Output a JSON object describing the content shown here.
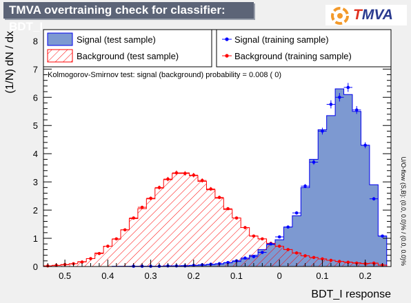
{
  "header": {
    "title": "TMVA overtraining check for classifier: BDT_I",
    "logo_text_a": "T",
    "logo_text_b": "MVA"
  },
  "colors": {
    "signal_fill": "#7d99d1",
    "signal_line": "#0000ee",
    "signal_points": "#0000ff",
    "background_hatch": "#ff0000",
    "background_points": "#ff0000",
    "title_bg": "#5c6477",
    "logo_ring": "#f39a2b"
  },
  "legend": {
    "signal_test": "Signal (test sample)",
    "background_test": "Background (test sample)",
    "signal_train": "Signal (training sample)",
    "background_train": "Background (training sample)"
  },
  "ks_text": "Kolmogorov-Smirnov test: signal (background) probability = 0.008 (    0)",
  "overflow_text": "U/O-flow (S,B): (0.0, 0.0)% / (0.0, 0.0)%",
  "chart_data": {
    "type": "histogram",
    "xlabel": "BDT_I response",
    "ylabel": "(1/N) dN / dx",
    "xlim": [
      -0.55,
      0.26
    ],
    "ylim": [
      0,
      8.4
    ],
    "x_ticks": [
      -0.5,
      -0.4,
      -0.3,
      -0.2,
      -0.1,
      0,
      0.1,
      0.2
    ],
    "x_tick_labels": [
      "0.5",
      "0.4",
      "0.3",
      "0.2",
      "0.1",
      "0",
      "0.1",
      "0.2"
    ],
    "y_ticks": [
      0,
      1,
      2,
      3,
      4,
      5,
      6,
      7,
      8
    ],
    "y_tick_labels": [
      "0",
      "1",
      "2",
      "3",
      "4",
      "5",
      "6",
      "7",
      "8"
    ],
    "bin_edges_start": -0.55,
    "bin_width": 0.02,
    "n_bins": 40,
    "series": [
      {
        "name": "Signal (test sample)",
        "style": "filled-histogram",
        "values": [
          0,
          0,
          0,
          0,
          0,
          0,
          0,
          0,
          0.01,
          0.01,
          0.01,
          0.01,
          0.01,
          0.01,
          0.02,
          0.02,
          0.03,
          0.04,
          0.05,
          0.07,
          0.09,
          0.13,
          0.18,
          0.27,
          0.4,
          0.6,
          0.78,
          0.95,
          1.4,
          1.8,
          2.8,
          3.8,
          4.85,
          5.35,
          6.3,
          6.1,
          5.5,
          4.3,
          2.9,
          1.08
        ]
      },
      {
        "name": "Background (test sample)",
        "style": "hatched-histogram",
        "values": [
          0.02,
          0.04,
          0.06,
          0.1,
          0.17,
          0.28,
          0.48,
          0.72,
          0.97,
          1.3,
          1.7,
          2.05,
          2.4,
          2.78,
          3.08,
          3.3,
          3.32,
          3.22,
          3.02,
          2.72,
          2.42,
          2.02,
          1.72,
          1.38,
          1.08,
          0.98,
          0.82,
          0.72,
          0.6,
          0.48,
          0.38,
          0.32,
          0.27,
          0.22,
          0.18,
          0.16,
          0.13,
          0.11,
          0.12,
          0.05
        ]
      },
      {
        "name": "Signal (training sample)",
        "style": "points",
        "values": [
          0,
          0,
          0,
          0,
          0,
          0,
          0,
          0,
          0,
          0,
          0.01,
          0.01,
          0.01,
          0.01,
          0.02,
          0.02,
          0.02,
          0.04,
          0.06,
          0.08,
          0.1,
          0.14,
          0.2,
          0.3,
          0.35,
          0.5,
          0.8,
          1.05,
          1.4,
          1.9,
          2.85,
          3.7,
          4.8,
          5.75,
          6.0,
          6.35,
          5.55,
          4.3,
          2.4,
          1.08
        ]
      },
      {
        "name": "Background (training sample)",
        "style": "points",
        "values": [
          0.02,
          0.04,
          0.07,
          0.1,
          0.16,
          0.28,
          0.46,
          0.72,
          0.98,
          1.3,
          1.72,
          2.1,
          2.42,
          2.8,
          3.1,
          3.32,
          3.3,
          3.24,
          3.05,
          2.75,
          2.45,
          2.05,
          1.72,
          1.38,
          1.08,
          0.98,
          0.82,
          0.72,
          0.6,
          0.48,
          0.38,
          0.32,
          0.27,
          0.22,
          0.18,
          0.15,
          0.12,
          0.1,
          0.12,
          0.05
        ]
      }
    ]
  }
}
